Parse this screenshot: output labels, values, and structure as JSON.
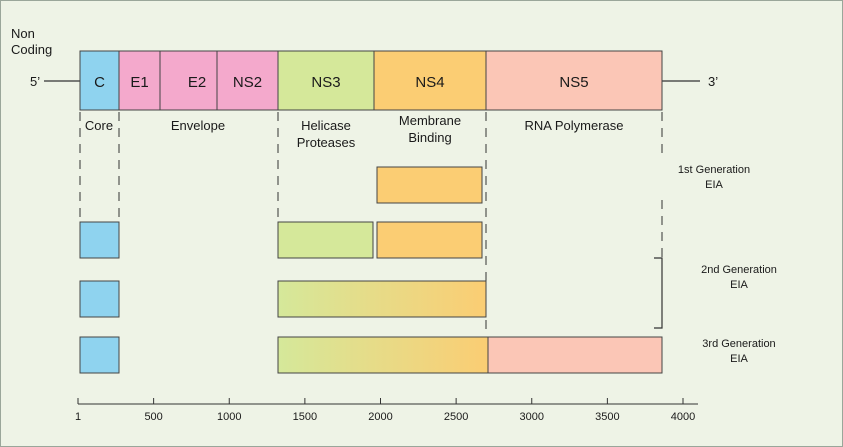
{
  "labels": {
    "non_coding_1": "Non",
    "non_coding_2": "Coding",
    "five_prime": "5’",
    "three_prime": "3’"
  },
  "colors": {
    "core": "#8fd3ef",
    "envelope": "#f4a9cc",
    "ns3": "#d5e89a",
    "ns4": "#fbcd73",
    "ns5": "#fbc6b6",
    "background": "#eef3e6"
  },
  "genome_segments": [
    {
      "id": "c",
      "label": "C",
      "color": "core"
    },
    {
      "id": "e1",
      "label": "E1",
      "color": "envelope"
    },
    {
      "id": "e2",
      "label": "E2",
      "color": "envelope"
    },
    {
      "id": "ns2",
      "label": "NS2",
      "color": "envelope"
    },
    {
      "id": "ns3",
      "label": "NS3",
      "color": "ns3"
    },
    {
      "id": "ns4",
      "label": "NS4",
      "color": "ns4"
    },
    {
      "id": "ns5",
      "label": "NS5",
      "color": "ns5"
    }
  ],
  "functions": {
    "core": "Core",
    "envelope": "Envelope",
    "helicase_1": "Helicase",
    "helicase_2": "Proteases",
    "membrane_1": "Membrane",
    "membrane_2": "Binding",
    "rna_polymerase": "RNA Polymerase"
  },
  "generations": {
    "first_1": "1st Generation",
    "first_2": "EIA",
    "second_1": "2nd Generation",
    "second_2": "EIA",
    "third_1": "3rd Generation",
    "third_2": "EIA"
  },
  "axis": {
    "ticks": [
      "1",
      "500",
      "1000",
      "1500",
      "2000",
      "2500",
      "3000",
      "3500",
      "4000"
    ]
  }
}
